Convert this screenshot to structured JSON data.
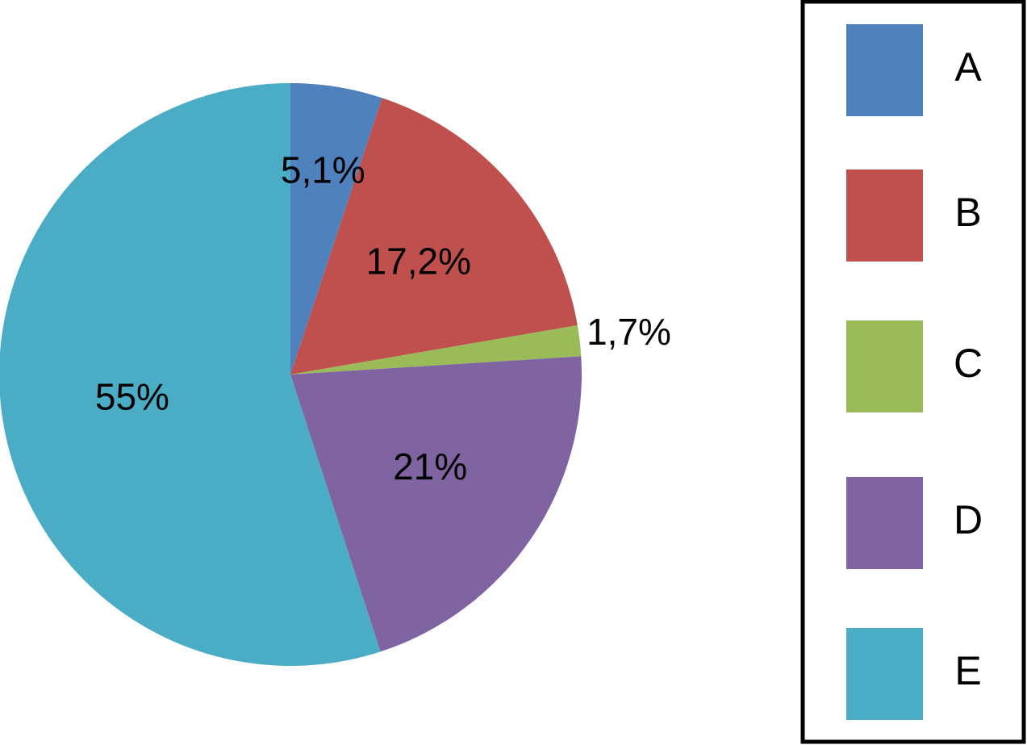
{
  "chart_data": {
    "type": "pie",
    "categories": [
      "A",
      "B",
      "C",
      "D",
      "E"
    ],
    "values": [
      5.1,
      17.2,
      1.7,
      21,
      55
    ],
    "labels": [
      "5,1%",
      "17,2%",
      "1,7%",
      "21%",
      "55%"
    ],
    "colors": [
      "#4F81BD",
      "#C0504D",
      "#9BBB59",
      "#8064A2",
      "#4BACC6"
    ],
    "start": "top",
    "direction": "clockwise",
    "legend": "right"
  }
}
